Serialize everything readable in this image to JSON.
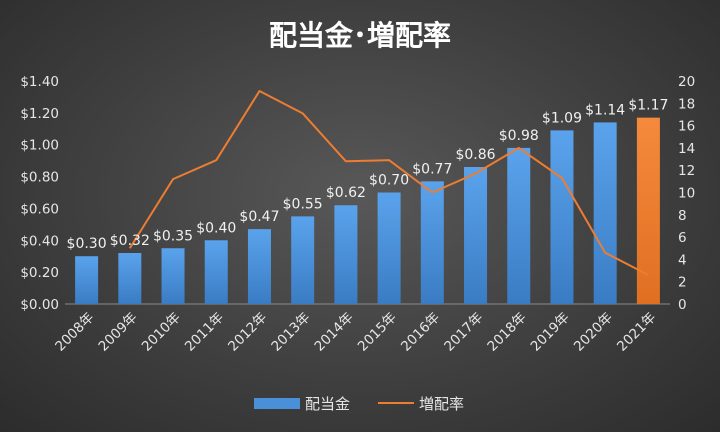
{
  "chart_data": {
    "type": "bar",
    "title": "配当金･増配率",
    "categories": [
      "2008年",
      "2009年",
      "2010年",
      "2011年",
      "2012年",
      "2013年",
      "2014年",
      "2015年",
      "2016年",
      "2017年",
      "2018年",
      "2019年",
      "2020年",
      "2021年"
    ],
    "series": [
      {
        "name": "配当金",
        "type": "bar",
        "axis": "left",
        "color": "#4a90d9",
        "highlight_color": "#ed7d31",
        "highlight_index": 13,
        "values": [
          0.3,
          0.32,
          0.35,
          0.4,
          0.47,
          0.55,
          0.62,
          0.7,
          0.77,
          0.86,
          0.98,
          1.09,
          1.14,
          1.17
        ],
        "labels": [
          "$0.30",
          "$0.32",
          "$0.35",
          "$0.40",
          "$0.47",
          "$0.55",
          "$0.62",
          "$0.70",
          "$0.77",
          "$0.86",
          "$0.98",
          "$1.09",
          "$1.14",
          "$1.17"
        ]
      },
      {
        "name": "増配率",
        "type": "line",
        "axis": "right",
        "color": "#ed7d31",
        "values": [
          null,
          5.0,
          11.2,
          12.9,
          19.1,
          17.1,
          12.8,
          12.9,
          10.0,
          11.7,
          14.0,
          11.3,
          4.6,
          2.6
        ]
      }
    ],
    "y_left": {
      "min": 0,
      "max": 1.4,
      "ticks": [
        "$0.00",
        "$0.20",
        "$0.40",
        "$0.60",
        "$0.80",
        "$1.00",
        "$1.20",
        "$1.40"
      ]
    },
    "y_right": {
      "min": 0,
      "max": 20,
      "ticks": [
        "0",
        "2",
        "4",
        "6",
        "8",
        "10",
        "12",
        "14",
        "16",
        "18",
        "20"
      ]
    },
    "grid": false,
    "legend": {
      "position": "bottom",
      "items": [
        "配当金",
        "増配率"
      ]
    }
  }
}
